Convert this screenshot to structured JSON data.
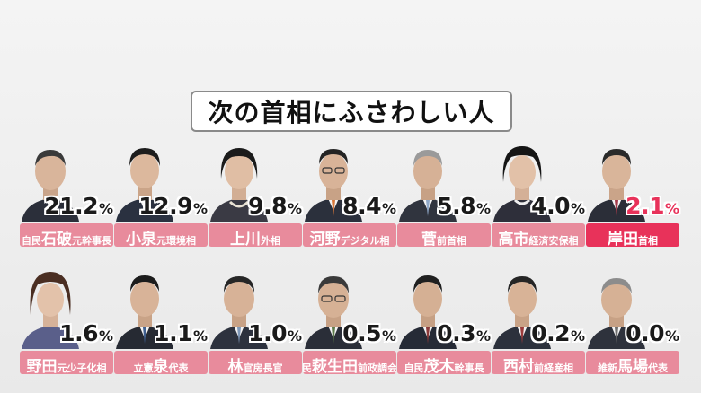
{
  "title": "次の首相にふさわしい人",
  "colors": {
    "label_bg": "#e88b9c",
    "highlight": "#e8325a"
  },
  "row1": [
    {
      "pre": "自民",
      "name": "石破",
      "role": "元幹事長",
      "pct": "21.2",
      "unit": "%"
    },
    {
      "pre": "",
      "name": "小泉",
      "role": "元環境相",
      "pct": "12.9",
      "unit": "%"
    },
    {
      "pre": "",
      "name": "上川",
      "role": "外相",
      "pct": "9.8",
      "unit": "%"
    },
    {
      "pre": "",
      "name": "河野",
      "role": "デジタル相",
      "pct": "8.4",
      "unit": "%"
    },
    {
      "pre": "",
      "name": "菅",
      "role": "前首相",
      "pct": "5.8",
      "unit": "%"
    },
    {
      "pre": "",
      "name": "高市",
      "role": "経済安保相",
      "pct": "4.0",
      "unit": "%"
    },
    {
      "pre": "",
      "name": "岸田",
      "role": "首相",
      "pct": "2.1",
      "unit": "%"
    }
  ],
  "row2": [
    {
      "pre": "",
      "name": "野田",
      "role": "元少子化相",
      "pct": "1.6",
      "unit": "%"
    },
    {
      "pre": "立憲",
      "name": "泉",
      "role": "代表",
      "pct": "1.1",
      "unit": "%"
    },
    {
      "pre": "",
      "name": "林",
      "role": "官房長官",
      "pct": "1.0",
      "unit": "%"
    },
    {
      "pre": "自民",
      "name": "萩生田",
      "role": "前政調会長",
      "pct": "0.5",
      "unit": "%"
    },
    {
      "pre": "自民",
      "name": "茂木",
      "role": "幹事長",
      "pct": "0.3",
      "unit": "%"
    },
    {
      "pre": "",
      "name": "西村",
      "role": "前経産相",
      "pct": "0.2",
      "unit": "%"
    },
    {
      "pre": "維新",
      "name": "馬場",
      "role": "代表",
      "pct": "0.0",
      "unit": "%"
    }
  ]
}
